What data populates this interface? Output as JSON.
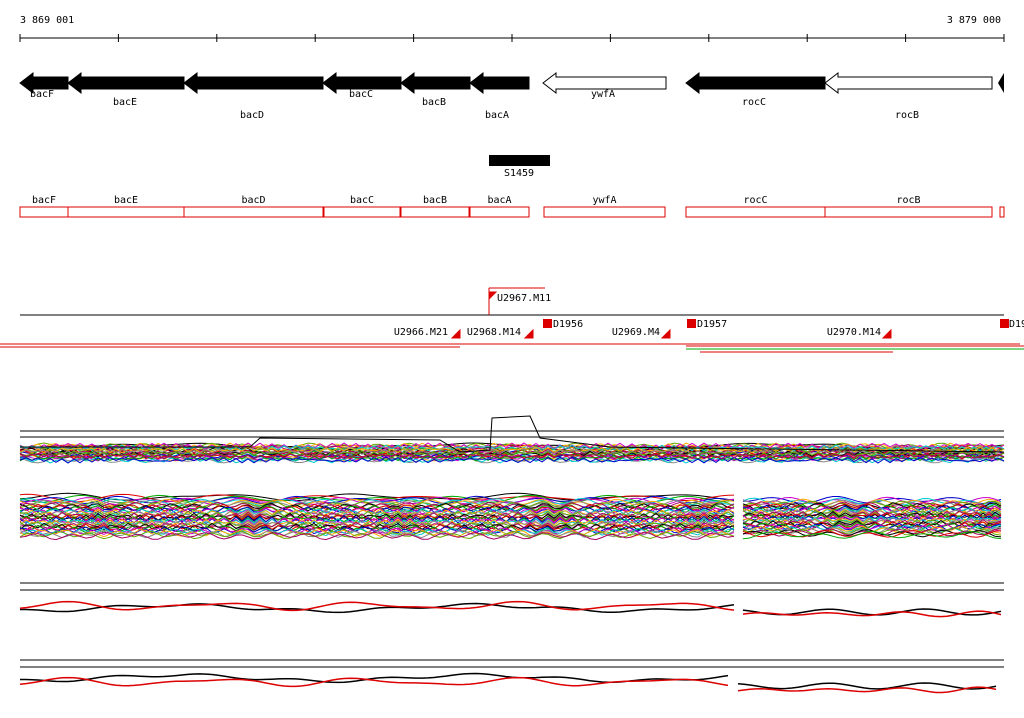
{
  "ruler": {
    "start": "3 869 001",
    "end": "3 879 000"
  },
  "genes": [
    "bacF",
    "bacE",
    "bacD",
    "bacC",
    "bacB",
    "bacA",
    "ywfA",
    "rocC",
    "rocB"
  ],
  "regions": [
    "bacF",
    "bacE",
    "bacD",
    "bacC",
    "bacB",
    "bacA",
    "ywfA",
    "rocC",
    "rocB"
  ],
  "element": "S1459",
  "features": [
    "U2967.M11",
    "U2966.M21",
    "U2968.M14",
    "D1956",
    "U2969.M4",
    "D1957",
    "U2970.M14",
    "D19"
  ]
}
